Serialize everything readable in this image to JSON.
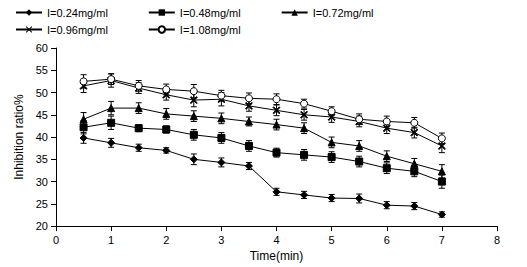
{
  "chart_data": {
    "type": "line",
    "x_label": "Time(min)",
    "y_label": "Inhibition ratio%",
    "x": [
      0.5,
      1,
      1.5,
      2,
      2.5,
      3,
      3.5,
      4,
      4.5,
      5,
      5.5,
      6,
      6.5,
      7
    ],
    "series": [
      {
        "name": "I=0.24mg/ml",
        "color": "#000000",
        "marker": "diamond",
        "values": [
          39.8,
          38.7,
          37.6,
          37.0,
          35.0,
          34.3,
          33.5,
          27.7,
          27.0,
          26.3,
          26.2,
          24.7,
          24.5,
          22.6
        ],
        "errors": [
          1.2,
          1.0,
          0.8,
          0.6,
          1.2,
          1.0,
          0.8,
          0.8,
          0.8,
          0.8,
          1.0,
          0.8,
          0.8,
          0.6
        ]
      },
      {
        "name": "I=0.48mg/ml",
        "color": "#000000",
        "marker": "square",
        "values": [
          42.2,
          43.2,
          42.0,
          41.7,
          40.5,
          39.8,
          38.0,
          36.5,
          36.0,
          35.5,
          34.5,
          33.0,
          32.3,
          30.0
        ],
        "errors": [
          1.5,
          1.5,
          0.8,
          0.8,
          1.2,
          1.2,
          1.2,
          1.0,
          1.2,
          1.2,
          1.2,
          1.2,
          1.2,
          1.5
        ]
      },
      {
        "name": "I=0.72mg/ml",
        "color": "#000000",
        "marker": "triangle",
        "values": [
          44.0,
          46.5,
          46.5,
          45.2,
          44.7,
          44.2,
          43.5,
          42.8,
          42.0,
          38.8,
          38.0,
          35.7,
          34.0,
          32.3
        ],
        "errors": [
          1.5,
          1.5,
          1.2,
          1.2,
          1.2,
          1.2,
          1.0,
          1.2,
          1.2,
          1.2,
          1.2,
          1.2,
          1.2,
          1.5
        ]
      },
      {
        "name": "I=0.96mg/ml",
        "color": "#000000",
        "marker": "x",
        "values": [
          51.5,
          52.7,
          51.0,
          49.5,
          48.3,
          48.5,
          47.0,
          46.0,
          45.0,
          44.5,
          43.5,
          42.0,
          41.0,
          38.0
        ],
        "errors": [
          1.5,
          1.5,
          1.2,
          1.2,
          1.5,
          1.5,
          1.2,
          1.2,
          1.2,
          1.2,
          1.2,
          1.2,
          1.2,
          1.5
        ]
      },
      {
        "name": "I=1.08mg/ml",
        "color": "#000000",
        "marker": "circle_open",
        "values": [
          52.5,
          53.0,
          51.5,
          50.7,
          50.3,
          49.3,
          48.7,
          48.5,
          47.5,
          45.8,
          44.0,
          43.5,
          43.2,
          39.7
        ],
        "errors": [
          1.5,
          1.2,
          1.2,
          1.2,
          1.5,
          1.2,
          1.2,
          1.2,
          1.0,
          1.0,
          1.2,
          1.2,
          1.2,
          1.2
        ]
      }
    ],
    "xlim": [
      0,
      8
    ],
    "xticks": [
      0,
      1,
      2,
      3,
      4,
      5,
      6,
      7,
      8
    ],
    "ylim": [
      20,
      60
    ],
    "yticks": [
      20,
      25,
      30,
      35,
      40,
      45,
      50,
      55,
      60
    ],
    "grid": false,
    "legend": "top"
  }
}
